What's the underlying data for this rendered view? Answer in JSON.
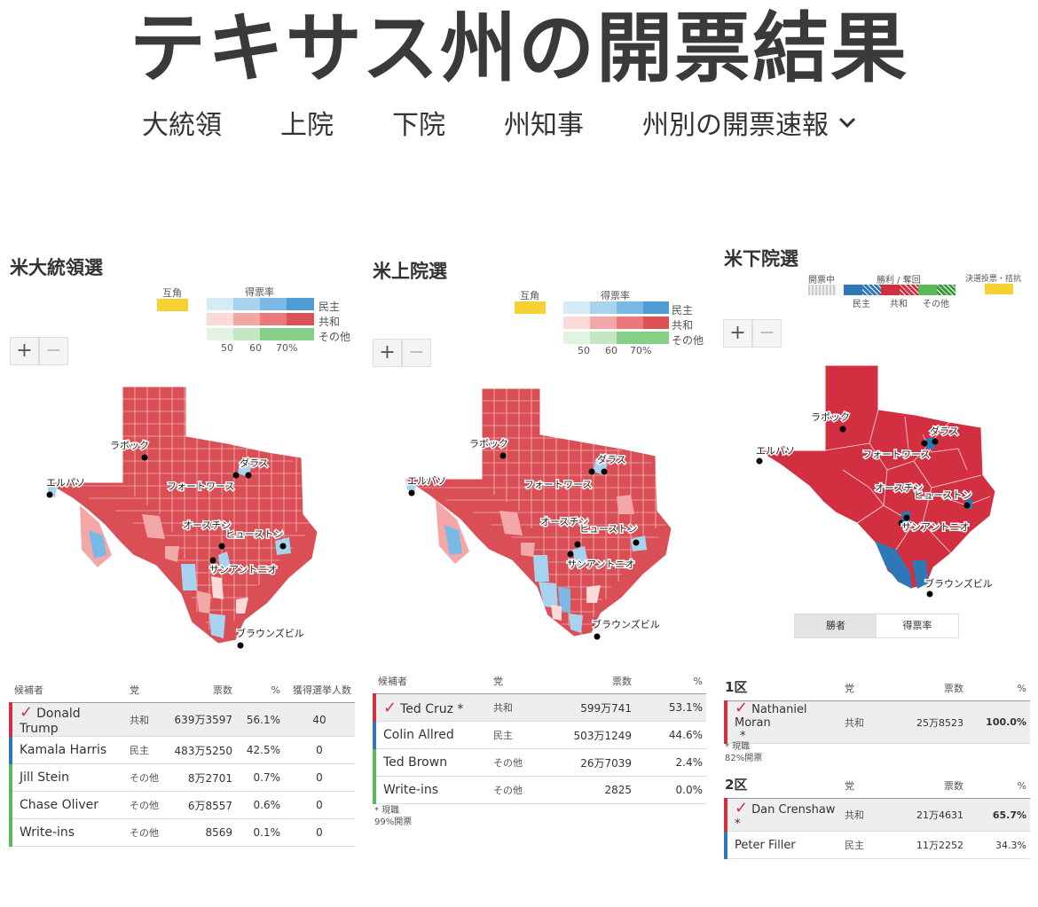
{
  "page": {
    "title": "テキサス州の開票結果",
    "nav": [
      "大統領",
      "上院",
      "下院",
      "州知事",
      "州別の開票速報"
    ]
  },
  "president": {
    "title": "米大統領選",
    "legend": {
      "tie_label": "互角",
      "rate_label": "得票率",
      "dem": "民主",
      "rep": "共和",
      "other": "その他",
      "ticks": [
        "50",
        "60",
        "70%"
      ]
    },
    "zoom": {
      "plus": "+",
      "minus": "−"
    },
    "cities": [
      "ラボック",
      "ダラス",
      "エルパソ",
      "フォートワース",
      "オースチン",
      "ヒューストン",
      "サンアントニオ",
      "ブラウンズビル"
    ],
    "columns": [
      "候補者",
      "党",
      "票数",
      "%",
      "獲得選挙人数"
    ],
    "rows": [
      {
        "name": "Donald Trump",
        "party": "共和",
        "votes": "639万3597",
        "pct": "56.1%",
        "ev": "40",
        "winner": true
      },
      {
        "name": "Kamala Harris",
        "party": "民主",
        "votes": "483万5250",
        "pct": "42.5%",
        "ev": "0"
      },
      {
        "name": "Jill Stein",
        "party": "その他",
        "votes": "8万2701",
        "pct": "0.7%",
        "ev": "0"
      },
      {
        "name": "Chase Oliver",
        "party": "その他",
        "votes": "6万8557",
        "pct": "0.6%",
        "ev": "0"
      },
      {
        "name": "Write-ins",
        "party": "その他",
        "votes": "8569",
        "pct": "0.1%",
        "ev": "0"
      }
    ]
  },
  "senate": {
    "title": "米上院選",
    "legend": {
      "tie_label": "互角",
      "rate_label": "得票率",
      "dem": "民主",
      "rep": "共和",
      "other": "その他",
      "ticks": [
        "50",
        "60",
        "70%"
      ]
    },
    "zoom": {
      "plus": "+",
      "minus": "−"
    },
    "cities": [
      "ラボック",
      "ダラス",
      "エルパソ",
      "フォートワース",
      "オースチン",
      "ヒューストン",
      "サンアントニオ",
      "ブラウンズビル"
    ],
    "columns": [
      "候補者",
      "党",
      "票数",
      "%"
    ],
    "rows": [
      {
        "name": "Ted Cruz *",
        "party": "共和",
        "votes": "599万741",
        "pct": "53.1%",
        "winner": true
      },
      {
        "name": "Colin Allred",
        "party": "民主",
        "votes": "503万1249",
        "pct": "44.6%"
      },
      {
        "name": "Ted Brown",
        "party": "その他",
        "votes": "26万7039",
        "pct": "2.4%"
      },
      {
        "name": "Write-ins",
        "party": "その他",
        "votes": "2825",
        "pct": "0.0%"
      }
    ],
    "note1": "* 現職",
    "note2": "99%開票"
  },
  "house": {
    "title": "米下院選",
    "legend": {
      "counting": "開票中",
      "win_label": "勝利 / 奪回",
      "dem": "民主",
      "rep": "共和",
      "other": "その他",
      "runoff": "決選投票・拮抗"
    },
    "zoom": {
      "plus": "+",
      "minus": "−"
    },
    "cities": [
      "ラボック",
      "ダラス",
      "エルパソ",
      "フォートワース",
      "オースチン",
      "ヒューストン",
      "サンアントニオ",
      "ブラウンズビル"
    ],
    "toggle": [
      "勝者",
      "得票率"
    ],
    "districts": [
      {
        "label": "1区",
        "columns": [
          "党",
          "票数",
          "%"
        ],
        "rows": [
          {
            "name": "Nathaniel Moran",
            "suffix": "*",
            "party": "共和",
            "votes": "25万8523",
            "pct": "100.0%",
            "winner": true
          }
        ],
        "note1": "* 現職",
        "note2": "82%開票"
      },
      {
        "label": "2区",
        "columns": [
          "党",
          "票数",
          "%"
        ],
        "rows": [
          {
            "name": "Dan Crenshaw *",
            "party": "共和",
            "votes": "21万4631",
            "pct": "65.7%",
            "winner": true
          },
          {
            "name": "Peter Filler",
            "party": "民主",
            "votes": "11万2252",
            "pct": "34.3%"
          }
        ]
      }
    ]
  },
  "colors": {
    "rep": "#d23040",
    "dem": "#2f78b7",
    "other": "#5aba5a",
    "tie": "#f5d232",
    "rep_light": "#f4a7a7",
    "rep_mid": "#e9797c",
    "dem_light": "#a8d3ef",
    "dem_mid": "#7ab8e6"
  }
}
